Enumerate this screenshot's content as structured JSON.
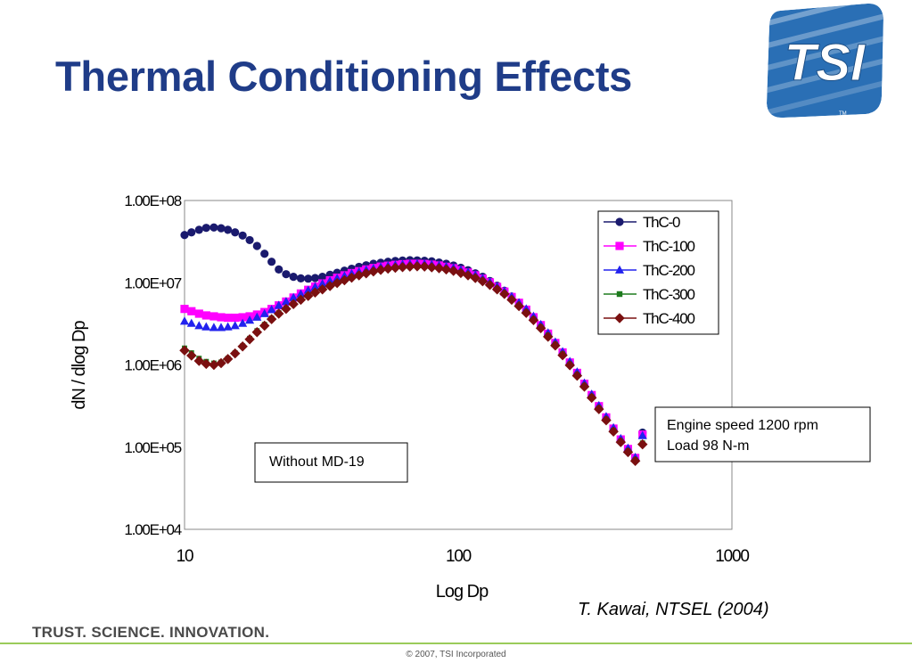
{
  "slide": {
    "title": "Thermal Conditioning Effects",
    "logo_text": "TSI",
    "logo_tm": "TM",
    "credit": "T. Kawai, NTSEL (2004)",
    "tagline": "TRUST. SCIENCE. INNOVATION.",
    "copyright": "© 2007, TSI Incorporated"
  },
  "colors": {
    "title": "#1f3c88",
    "logo_blue": "#2a6fb5",
    "footer_line": "#9acb5a"
  },
  "chart_data": {
    "type": "scatter",
    "xscale": "log",
    "yscale": "log",
    "xlabel": "Log Dp",
    "ylabel": "dN / dlog Dp",
    "xlim": [
      10,
      1000
    ],
    "ylim": [
      10000,
      100000000
    ],
    "xticks": [
      "10",
      "100",
      "1000"
    ],
    "yticks": [
      "1.00E+04",
      "1.00E+05",
      "1.00E+06",
      "1.00E+07",
      "1.00E+08"
    ],
    "grid": false,
    "legend_position": "top-right",
    "annotations": [
      {
        "text": "Without MD-19"
      },
      {
        "lines": [
          "Engine speed 1200 rpm",
          "Load 98 N-m"
        ]
      }
    ],
    "x": [
      10.0,
      10.6,
      11.3,
      12.0,
      12.8,
      13.6,
      14.4,
      15.3,
      16.3,
      17.3,
      18.4,
      19.6,
      20.8,
      22.1,
      23.5,
      25.0,
      26.6,
      28.3,
      30.0,
      31.9,
      34.0,
      36.1,
      38.4,
      40.8,
      43.4,
      46.1,
      49.0,
      52.1,
      55.4,
      58.9,
      62.6,
      66.6,
      70.8,
      75.3,
      80.0,
      85.1,
      90.4,
      96.1,
      102.2,
      108.6,
      115.5,
      122.8,
      130.5,
      138.7,
      147.5,
      156.8,
      166.7,
      177.2,
      188.4,
      200.3,
      212.9,
      226.3,
      240.6,
      255.8,
      271.9,
      289.0,
      307.3,
      326.6,
      347.2,
      369.1,
      392.4,
      417.2,
      443.5,
      471.4
    ],
    "series": [
      {
        "name": "ThC-0",
        "color": "#1a1a6e",
        "marker": "circle",
        "values": [
          38000000,
          41000000,
          44000000,
          46500000,
          47000000,
          46000000,
          44000000,
          41000000,
          37500000,
          33000000,
          28000000,
          22500000,
          18000000,
          14500000,
          12700000,
          11800000,
          11300000,
          11200000,
          11400000,
          11800000,
          12500000,
          13200000,
          14000000,
          14800000,
          15600000,
          16300000,
          17000000,
          17500000,
          18000000,
          18400000,
          18600000,
          18800000,
          18700000,
          18500000,
          18200000,
          17600000,
          17000000,
          16200000,
          15200000,
          14200000,
          13000000,
          11800000,
          10500000,
          9200000,
          8000000,
          6800000,
          5700000,
          4700000,
          3800000,
          3000000,
          2350000,
          1800000,
          1380000,
          1030000,
          770000,
          560000,
          410000,
          300000,
          220000,
          160000,
          118000,
          90000,
          70000,
          150000
        ]
      },
      {
        "name": "ThC-100",
        "color": "#ff00ff",
        "marker": "square",
        "values": [
          4800000,
          4500000,
          4200000,
          4000000,
          3900000,
          3800000,
          3750000,
          3750000,
          3800000,
          3900000,
          4100000,
          4400000,
          4800000,
          5300000,
          5900000,
          6600000,
          7400000,
          8200000,
          9000000,
          9800000,
          10700000,
          11500000,
          12300000,
          13100000,
          13800000,
          14500000,
          15100000,
          15700000,
          16100000,
          16500000,
          16800000,
          17000000,
          17000000,
          16900000,
          16600000,
          16200000,
          15600000,
          15000000,
          14200000,
          13300000,
          12300000,
          11200000,
          10100000,
          8900000,
          7800000,
          6700000,
          5700000,
          4700000,
          3800000,
          3050000,
          2400000,
          1850000,
          1420000,
          1070000,
          800000,
          590000,
          430000,
          315000,
          230000,
          168000,
          124000,
          95000,
          74000,
          142000
        ]
      },
      {
        "name": "ThC-200",
        "color": "#2222ee",
        "marker": "triangle",
        "values": [
          3400000,
          3200000,
          3000000,
          2900000,
          2850000,
          2850000,
          2900000,
          3000000,
          3200000,
          3500000,
          3800000,
          4200000,
          4700000,
          5300000,
          5900000,
          6600000,
          7300000,
          8100000,
          8900000,
          9700000,
          10500000,
          11300000,
          12100000,
          12900000,
          13600000,
          14300000,
          14900000,
          15500000,
          16000000,
          16400000,
          16700000,
          16900000,
          17000000,
          16900000,
          16600000,
          16200000,
          15700000,
          15100000,
          14300000,
          13400000,
          12400000,
          11300000,
          10200000,
          9000000,
          7900000,
          6800000,
          5700000,
          4800000,
          3900000,
          3100000,
          2450000,
          1900000,
          1450000,
          1100000,
          820000,
          600000,
          440000,
          320000,
          235000,
          172000,
          127000,
          97000,
          75000,
          138000
        ]
      },
      {
        "name": "ThC-300",
        "color": "#1e7b1e",
        "marker": "small-square",
        "values": [
          1600000,
          1400000,
          1200000,
          1100000,
          1050000,
          1080000,
          1200000,
          1400000,
          1700000,
          2100000,
          2600000,
          3100000,
          3700000,
          4300000,
          4900000,
          5600000,
          6300000,
          7000000,
          7700000,
          8400000,
          9200000,
          10000000,
          10800000,
          11600000,
          12400000,
          13100000,
          13800000,
          14400000,
          14900000,
          15300000,
          15600000,
          15800000,
          15900000,
          15800000,
          15500000,
          15100000,
          14600000,
          14000000,
          13300000,
          12400000,
          11500000,
          10500000,
          9500000,
          8400000,
          7400000,
          6300000,
          5300000,
          4400000,
          3600000,
          2900000,
          2300000,
          1780000,
          1360000,
          1020000,
          760000,
          560000,
          410000,
          298000,
          218000,
          160000,
          118000,
          90000,
          70000,
          112000
        ]
      },
      {
        "name": "ThC-400",
        "color": "#7a1010",
        "marker": "diamond",
        "values": [
          1500000,
          1300000,
          1120000,
          1030000,
          1000000,
          1050000,
          1180000,
          1380000,
          1680000,
          2050000,
          2500000,
          3000000,
          3600000,
          4200000,
          4800000,
          5500000,
          6200000,
          6900000,
          7600000,
          8300000,
          9100000,
          9900000,
          10700000,
          11500000,
          12300000,
          13000000,
          13700000,
          14300000,
          14800000,
          15200000,
          15500000,
          15700000,
          15800000,
          15700000,
          15400000,
          15000000,
          14500000,
          13900000,
          13100000,
          12300000,
          11400000,
          10400000,
          9400000,
          8300000,
          7300000,
          6200000,
          5200000,
          4300000,
          3500000,
          2800000,
          2200000,
          1720000,
          1310000,
          990000,
          740000,
          545000,
          398000,
          290000,
          212000,
          155000,
          115000,
          87000,
          68000,
          108000
        ]
      }
    ]
  }
}
